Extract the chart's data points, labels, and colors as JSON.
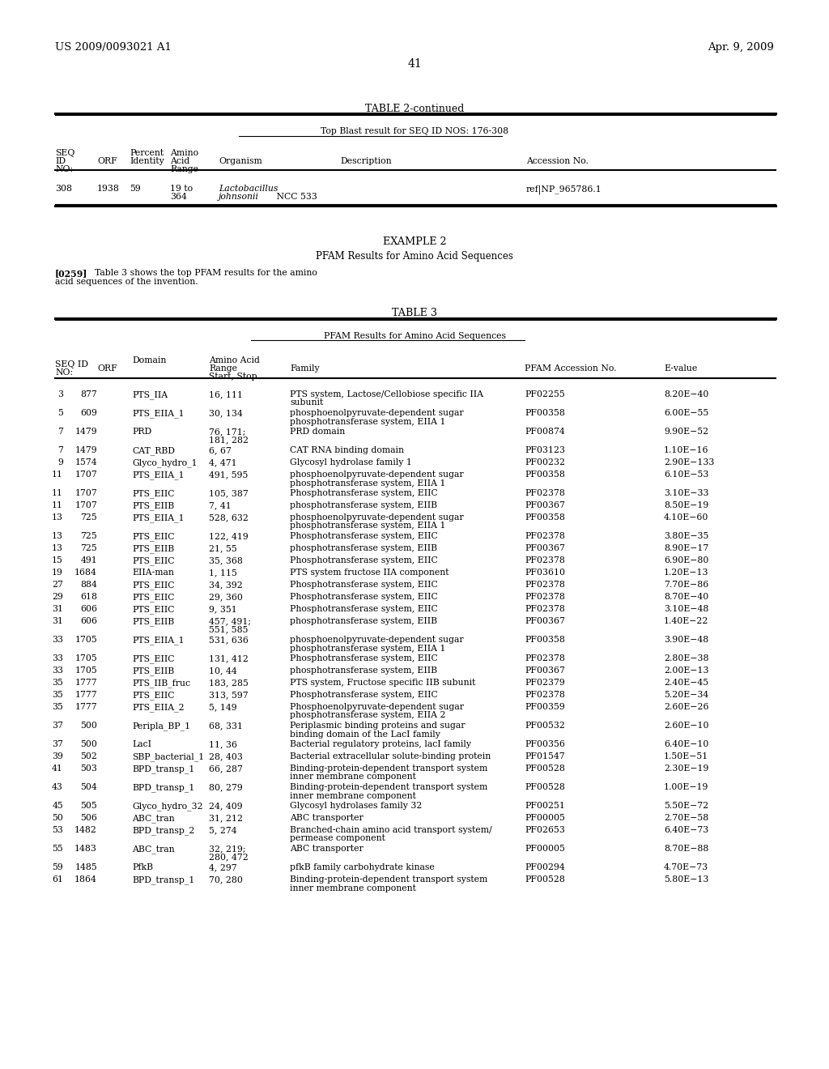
{
  "header_left": "US 2009/0093021 A1",
  "header_right": "Apr. 9, 2009",
  "page_number": "41",
  "table2_title": "TABLE 2-continued",
  "table2_subtitle": "Top Blast result for SEQ ID NOS: 176-308",
  "table3_title": "TABLE 3",
  "table3_subtitle": "PFAM Results for Amino Acid Sequences",
  "example2_title": "EXAMPLE 2",
  "example2_subtitle": "PFAM Results for Amino Acid Sequences",
  "example2_para": "[0259]    Table 3 shows the top PFAM results for the amino\nacid sequences of the invention.",
  "table3_data": [
    [
      "3",
      "877",
      "PTS_IIA",
      "16, 111",
      "PTS system, Lactose/Cellobiose specific IIA\nsubunit",
      "PF02255",
      "8.20E−40"
    ],
    [
      "5",
      "609",
      "PTS_EIIA_1",
      "30, 134",
      "phosphoenolpyruvate-dependent sugar\nphosphotransferase system, EIIA 1",
      "PF00358",
      "6.00E−55"
    ],
    [
      "7",
      "1479",
      "PRD",
      "76, 171;\n181, 282",
      "PRD domain",
      "PF00874",
      "9.90E−52"
    ],
    [
      "7",
      "1479",
      "CAT_RBD",
      "6, 67",
      "CAT RNA binding domain",
      "PF03123",
      "1.10E−16"
    ],
    [
      "9",
      "1574",
      "Glyco_hydro_1",
      "4, 471",
      "Glycosyl hydrolase family 1",
      "PF00232",
      "2.90E−133"
    ],
    [
      "11",
      "1707",
      "PTS_EIIA_1",
      "491, 595",
      "phosphoenolpyruvate-dependent sugar\nphosphotransferase system, EIIA 1",
      "PF00358",
      "6.10E−53"
    ],
    [
      "11",
      "1707",
      "PTS_EIIC",
      "105, 387",
      "Phosphotransferase system, EIIC",
      "PF02378",
      "3.10E−33"
    ],
    [
      "11",
      "1707",
      "PTS_EIIB",
      "7, 41",
      "phosphotransferase system, EIIB",
      "PF00367",
      "8.50E−19"
    ],
    [
      "13",
      "725",
      "PTS_EIIA_1",
      "528, 632",
      "phosphoenolpyruvate-dependent sugar\nphosphotransferase system, EIIA 1",
      "PF00358",
      "4.10E−60"
    ],
    [
      "13",
      "725",
      "PTS_EIIC",
      "122, 419",
      "Phosphotransferase system, EIIC",
      "PF02378",
      "3.80E−35"
    ],
    [
      "13",
      "725",
      "PTS_EIIB",
      "21, 55",
      "phosphotransferase system, EIIB",
      "PF00367",
      "8.90E−17"
    ],
    [
      "15",
      "491",
      "PTS_EIIC",
      "35, 368",
      "Phosphotransferase system, EIIC",
      "PF02378",
      "6.90E−80"
    ],
    [
      "19",
      "1684",
      "EIIA-man",
      "1, 115",
      "PTS system fructose IIA component",
      "PF03610",
      "1.20E−13"
    ],
    [
      "27",
      "884",
      "PTS_EIIC",
      "34, 392",
      "Phosphotransferase system, EIIC",
      "PF02378",
      "7.70E−86"
    ],
    [
      "29",
      "618",
      "PTS_EIIC",
      "29, 360",
      "Phosphotransferase system, EIIC",
      "PF02378",
      "8.70E−40"
    ],
    [
      "31",
      "606",
      "PTS_EIIC",
      "9, 351",
      "Phosphotransferase system, EIIC",
      "PF02378",
      "3.10E−48"
    ],
    [
      "31",
      "606",
      "PTS_EIIB",
      "457, 491;\n551, 585",
      "phosphotransferase system, EIIB",
      "PF00367",
      "1.40E−22"
    ],
    [
      "33",
      "1705",
      "PTS_EIIA_1",
      "531, 636",
      "phosphoenolpyruvate-dependent sugar\nphosphotransferase system, EIIA 1",
      "PF00358",
      "3.90E−48"
    ],
    [
      "33",
      "1705",
      "PTS_EIIC",
      "131, 412",
      "Phosphotransferase system, EIIC",
      "PF02378",
      "2.80E−38"
    ],
    [
      "33",
      "1705",
      "PTS_EIIB",
      "10, 44",
      "phosphotransferase system, EIIB",
      "PF00367",
      "2.00E−13"
    ],
    [
      "35",
      "1777",
      "PTS_IIB_fruc",
      "183, 285",
      "PTS system, Fructose specific IIB subunit",
      "PF02379",
      "2.40E−45"
    ],
    [
      "35",
      "1777",
      "PTS_EIIC",
      "313, 597",
      "Phosphotransferase system, EIIC",
      "PF02378",
      "5.20E−34"
    ],
    [
      "35",
      "1777",
      "PTS_EIIA_2",
      "5, 149",
      "Phosphoenolpyruvate-dependent sugar\nphosphotransferase system, EIIA 2",
      "PF00359",
      "2.60E−26"
    ],
    [
      "37",
      "500",
      "Peripla_BP_1",
      "68, 331",
      "Periplasmic binding proteins and sugar\nbinding domain of the LacI family",
      "PF00532",
      "2.60E−10"
    ],
    [
      "37",
      "500",
      "LacI",
      "11, 36",
      "Bacterial regulatory proteins, lacI family",
      "PF00356",
      "6.40E−10"
    ],
    [
      "39",
      "502",
      "SBP_bacterial_1",
      "28, 403",
      "Bacterial extracellular solute-binding protein",
      "PF01547",
      "1.50E−51"
    ],
    [
      "41",
      "503",
      "BPD_transp_1",
      "66, 287",
      "Binding-protein-dependent transport system\ninner membrane component",
      "PF00528",
      "2.30E−19"
    ],
    [
      "43",
      "504",
      "BPD_transp_1",
      "80, 279",
      "Binding-protein-dependent transport system\ninner membrane component",
      "PF00528",
      "1.00E−19"
    ],
    [
      "45",
      "505",
      "Glyco_hydro_32",
      "24, 409",
      "Glycosyl hydrolases family 32",
      "PF00251",
      "5.50E−72"
    ],
    [
      "50",
      "506",
      "ABC_tran",
      "31, 212",
      "ABC transporter",
      "PF00005",
      "2.70E−58"
    ],
    [
      "53",
      "1482",
      "BPD_transp_2",
      "5, 274",
      "Branched-chain amino acid transport system/\npermease component",
      "PF02653",
      "6.40E−73"
    ],
    [
      "55",
      "1483",
      "ABC_tran",
      "32, 219;\n280, 472",
      "ABC transporter",
      "PF00005",
      "8.70E−88"
    ],
    [
      "59",
      "1485",
      "PfkB",
      "4, 297",
      "pfkB family carbohydrate kinase",
      "PF00294",
      "4.70E−73"
    ],
    [
      "61",
      "1864",
      "BPD_transp_1",
      "70, 280",
      "Binding-protein-dependent transport system\ninner membrane component",
      "PF00528",
      "5.80E−13"
    ]
  ],
  "bg_color": "#ffffff",
  "text_color": "#000000"
}
